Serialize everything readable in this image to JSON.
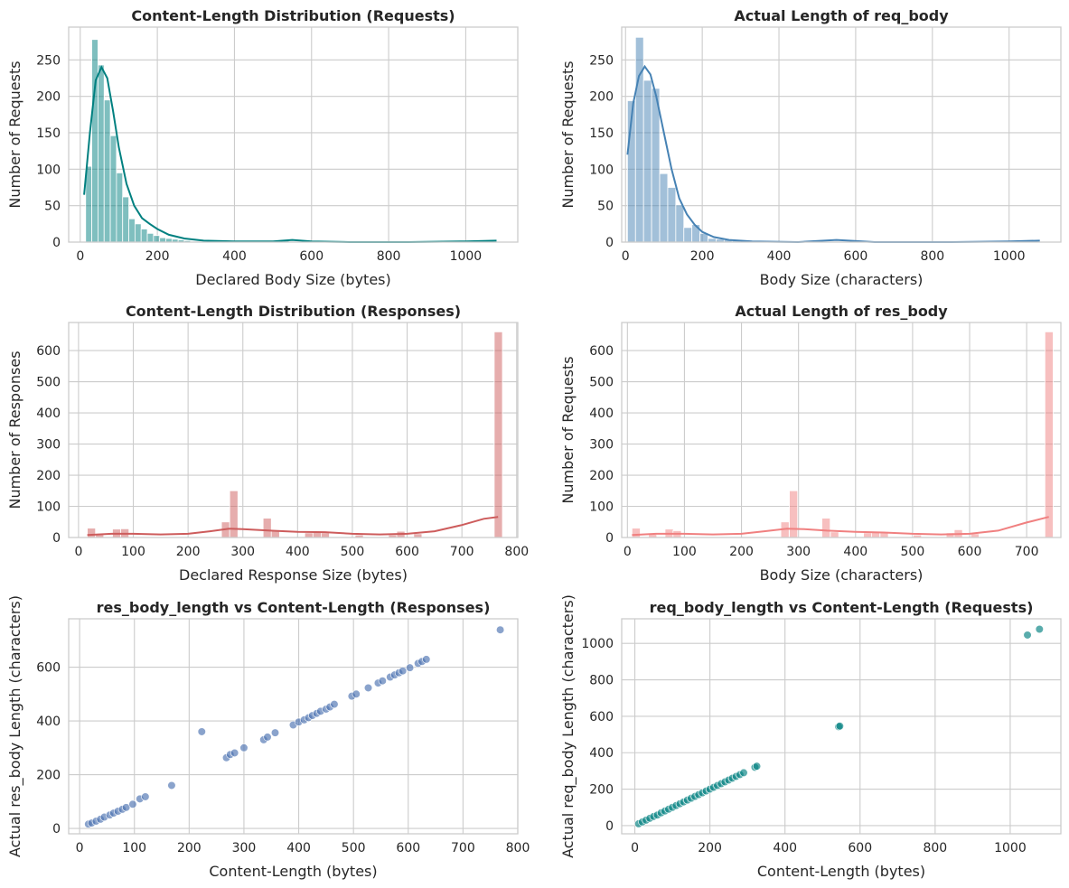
{
  "chart_data": [
    {
      "type": "histogram",
      "title": "Content-Length Distribution (Requests)",
      "xlabel": "Declared Body Size (bytes)",
      "ylabel": "Number of Requests",
      "xlim": [
        -30,
        1135
      ],
      "ylim": [
        0,
        295
      ],
      "xticks": [
        0,
        200,
        400,
        600,
        800,
        1000
      ],
      "yticks": [
        0,
        50,
        100,
        150,
        200,
        250
      ],
      "color": "#008080",
      "bar_opacity": 0.5,
      "kde": true,
      "bin_width": 16,
      "bins": [
        [
          14,
          104
        ],
        [
          30,
          278
        ],
        [
          46,
          243
        ],
        [
          62,
          195
        ],
        [
          78,
          146
        ],
        [
          94,
          95
        ],
        [
          110,
          62
        ],
        [
          126,
          32
        ],
        [
          142,
          25
        ],
        [
          158,
          18
        ],
        [
          174,
          12
        ],
        [
          190,
          9
        ],
        [
          206,
          6
        ],
        [
          222,
          5
        ],
        [
          238,
          4
        ],
        [
          254,
          3
        ],
        [
          270,
          2
        ],
        [
          286,
          1
        ],
        [
          302,
          1
        ],
        [
          318,
          1
        ],
        [
          526,
          2
        ],
        [
          542,
          1
        ],
        [
          1046,
          1
        ],
        [
          1062,
          1
        ]
      ],
      "kde_points": [
        [
          10,
          65
        ],
        [
          25,
          150
        ],
        [
          40,
          222
        ],
        [
          55,
          240
        ],
        [
          70,
          225
        ],
        [
          85,
          180
        ],
        [
          100,
          130
        ],
        [
          120,
          80
        ],
        [
          140,
          50
        ],
        [
          160,
          33
        ],
        [
          180,
          25
        ],
        [
          200,
          18
        ],
        [
          230,
          10
        ],
        [
          270,
          5
        ],
        [
          320,
          2
        ],
        [
          400,
          1
        ],
        [
          500,
          1
        ],
        [
          550,
          3
        ],
        [
          600,
          1
        ],
        [
          700,
          0
        ],
        [
          850,
          0
        ],
        [
          1000,
          1
        ],
        [
          1080,
          2
        ]
      ]
    },
    {
      "type": "histogram",
      "title": "Actual Length of req_body",
      "xlabel": "Body Size (characters)",
      "ylabel": "Number of Requests",
      "xlim": [
        -10,
        1135
      ],
      "ylim": [
        0,
        295
      ],
      "xticks": [
        0,
        200,
        400,
        600,
        800,
        1000
      ],
      "yticks": [
        0,
        50,
        100,
        150,
        200,
        250
      ],
      "color": "#4682b4",
      "bar_opacity": 0.5,
      "kde": true,
      "bin_width": 21,
      "bins": [
        [
          5,
          194
        ],
        [
          26,
          281
        ],
        [
          47,
          222
        ],
        [
          68,
          211
        ],
        [
          89,
          94
        ],
        [
          110,
          75
        ],
        [
          131,
          51
        ],
        [
          152,
          20
        ],
        [
          173,
          24
        ],
        [
          194,
          12
        ],
        [
          215,
          5
        ],
        [
          236,
          4
        ],
        [
          257,
          3
        ],
        [
          278,
          2
        ],
        [
          299,
          1
        ],
        [
          530,
          1
        ],
        [
          1051,
          1
        ],
        [
          1072,
          1
        ]
      ],
      "kde_points": [
        [
          5,
          120
        ],
        [
          20,
          190
        ],
        [
          35,
          228
        ],
        [
          50,
          241
        ],
        [
          65,
          230
        ],
        [
          80,
          200
        ],
        [
          100,
          150
        ],
        [
          120,
          100
        ],
        [
          140,
          60
        ],
        [
          160,
          38
        ],
        [
          180,
          24
        ],
        [
          200,
          14
        ],
        [
          230,
          7
        ],
        [
          270,
          3
        ],
        [
          330,
          1
        ],
        [
          450,
          0
        ],
        [
          550,
          3
        ],
        [
          650,
          0
        ],
        [
          850,
          0
        ],
        [
          1000,
          1
        ],
        [
          1080,
          2
        ]
      ]
    },
    {
      "type": "histogram",
      "title": "Content-Length Distribution (Responses)",
      "xlabel": "Declared Response Size (bytes)",
      "ylabel": "Number of Responses",
      "xlim": [
        -18,
        802
      ],
      "ylim": [
        0,
        690
      ],
      "xticks": [
        0,
        100,
        200,
        300,
        400,
        500,
        600,
        700,
        800
      ],
      "yticks": [
        0,
        100,
        200,
        300,
        400,
        500,
        600
      ],
      "color": "#cd5c5c",
      "bar_opacity": 0.5,
      "kde": true,
      "bin_width": 15,
      "bins": [
        [
          16,
          30
        ],
        [
          31,
          12
        ],
        [
          62,
          27
        ],
        [
          77,
          28
        ],
        [
          261,
          50
        ],
        [
          276,
          150
        ],
        [
          337,
          62
        ],
        [
          352,
          20
        ],
        [
          413,
          15
        ],
        [
          428,
          20
        ],
        [
          443,
          15
        ],
        [
          505,
          8
        ],
        [
          566,
          8
        ],
        [
          581,
          20
        ],
        [
          612,
          12
        ],
        [
          759,
          660
        ]
      ],
      "kde_points": [
        [
          16,
          8
        ],
        [
          60,
          12
        ],
        [
          100,
          12
        ],
        [
          150,
          10
        ],
        [
          200,
          12
        ],
        [
          240,
          20
        ],
        [
          275,
          28
        ],
        [
          300,
          27
        ],
        [
          350,
          22
        ],
        [
          400,
          18
        ],
        [
          450,
          17
        ],
        [
          500,
          12
        ],
        [
          550,
          10
        ],
        [
          600,
          12
        ],
        [
          650,
          20
        ],
        [
          700,
          40
        ],
        [
          740,
          60
        ],
        [
          766,
          66
        ]
      ]
    },
    {
      "type": "histogram",
      "title": "Actual Length of res_body",
      "xlabel": "Body Size (characters)",
      "ylabel": "Number of Requests",
      "xlim": [
        -10,
        760
      ],
      "ylim": [
        0,
        690
      ],
      "xticks": [
        0,
        100,
        200,
        300,
        400,
        500,
        600,
        700
      ],
      "yticks": [
        0,
        100,
        200,
        300,
        400,
        500,
        600
      ],
      "color": "#f08080",
      "bar_opacity": 0.5,
      "kde": true,
      "bin_width": 14.5,
      "bins": [
        [
          8,
          30
        ],
        [
          37,
          10
        ],
        [
          66,
          27
        ],
        [
          80,
          22
        ],
        [
          269,
          50
        ],
        [
          284,
          150
        ],
        [
          341,
          62
        ],
        [
          356,
          18
        ],
        [
          414,
          15
        ],
        [
          428,
          17
        ],
        [
          443,
          15
        ],
        [
          501,
          8
        ],
        [
          559,
          15
        ],
        [
          573,
          25
        ],
        [
          602,
          12
        ],
        [
          732,
          660
        ]
      ],
      "kde_points": [
        [
          8,
          8
        ],
        [
          50,
          12
        ],
        [
          100,
          12
        ],
        [
          150,
          10
        ],
        [
          200,
          12
        ],
        [
          240,
          20
        ],
        [
          280,
          28
        ],
        [
          310,
          27
        ],
        [
          350,
          22
        ],
        [
          400,
          18
        ],
        [
          450,
          16
        ],
        [
          500,
          12
        ],
        [
          550,
          10
        ],
        [
          600,
          12
        ],
        [
          650,
          22
        ],
        [
          700,
          48
        ],
        [
          739,
          66
        ]
      ]
    },
    {
      "type": "scatter",
      "title": "res_body_length vs Content-Length (Responses)",
      "xlabel": "Content-Length (bytes)",
      "ylabel": "Actual res_body Length (characters)",
      "xlim": [
        -20,
        800
      ],
      "ylim": [
        -20,
        780
      ],
      "xticks": [
        0,
        100,
        200,
        300,
        400,
        500,
        600,
        700,
        800
      ],
      "yticks": [
        0,
        200,
        400,
        600
      ],
      "color": "#4c72b0",
      "points": [
        [
          16,
          16
        ],
        [
          22,
          20
        ],
        [
          30,
          27
        ],
        [
          38,
          34
        ],
        [
          45,
          42
        ],
        [
          55,
          50
        ],
        [
          62,
          57
        ],
        [
          70,
          64
        ],
        [
          78,
          71
        ],
        [
          85,
          78
        ],
        [
          97,
          90
        ],
        [
          110,
          110
        ],
        [
          120,
          118
        ],
        [
          168,
          160
        ],
        [
          223,
          360
        ],
        [
          268,
          263
        ],
        [
          275,
          275
        ],
        [
          283,
          281
        ],
        [
          300,
          300
        ],
        [
          336,
          330
        ],
        [
          343,
          340
        ],
        [
          357,
          356
        ],
        [
          390,
          385
        ],
        [
          400,
          396
        ],
        [
          410,
          404
        ],
        [
          418,
          412
        ],
        [
          425,
          420
        ],
        [
          433,
          428
        ],
        [
          440,
          436
        ],
        [
          450,
          444
        ],
        [
          457,
          452
        ],
        [
          465,
          462
        ],
        [
          497,
          492
        ],
        [
          505,
          500
        ],
        [
          527,
          523
        ],
        [
          545,
          541
        ],
        [
          553,
          549
        ],
        [
          567,
          563
        ],
        [
          575,
          571
        ],
        [
          583,
          579
        ],
        [
          590,
          586
        ],
        [
          603,
          598
        ],
        [
          618,
          614
        ],
        [
          625,
          621
        ],
        [
          633,
          629
        ],
        [
          768,
          739
        ]
      ]
    },
    {
      "type": "scatter",
      "title": "req_body_length vs Content-Length (Requests)",
      "xlabel": "Content-Length (bytes)",
      "ylabel": "Actual req_body Length (characters)",
      "xlim": [
        -35,
        1135
      ],
      "ylim": [
        -45,
        1135
      ],
      "xticks": [
        0,
        200,
        400,
        600,
        800,
        1000
      ],
      "yticks": [
        0,
        200,
        400,
        600,
        800,
        1000
      ],
      "color": "#008080",
      "points": [
        [
          10,
          10
        ],
        [
          20,
          20
        ],
        [
          30,
          30
        ],
        [
          40,
          40
        ],
        [
          50,
          50
        ],
        [
          60,
          58
        ],
        [
          70,
          70
        ],
        [
          80,
          80
        ],
        [
          90,
          90
        ],
        [
          100,
          100
        ],
        [
          110,
          110
        ],
        [
          120,
          120
        ],
        [
          130,
          130
        ],
        [
          140,
          140
        ],
        [
          150,
          150
        ],
        [
          160,
          160
        ],
        [
          170,
          170
        ],
        [
          180,
          180
        ],
        [
          190,
          190
        ],
        [
          200,
          200
        ],
        [
          210,
          210
        ],
        [
          220,
          220
        ],
        [
          230,
          230
        ],
        [
          240,
          240
        ],
        [
          250,
          250
        ],
        [
          260,
          260
        ],
        [
          270,
          270
        ],
        [
          280,
          280
        ],
        [
          290,
          290
        ],
        [
          320,
          320
        ],
        [
          325,
          326
        ],
        [
          543,
          543
        ],
        [
          546,
          546
        ],
        [
          1046,
          1046
        ],
        [
          1078,
          1078
        ]
      ]
    }
  ]
}
